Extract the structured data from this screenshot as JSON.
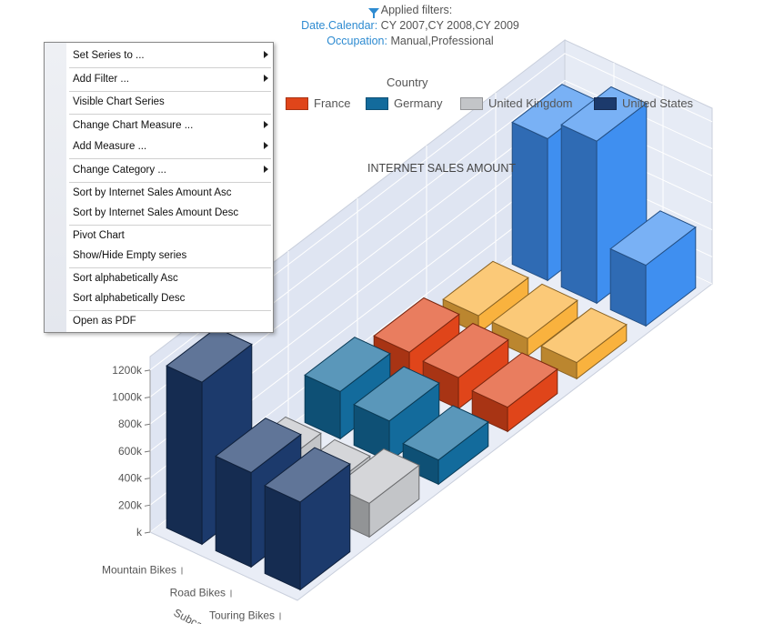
{
  "filters": {
    "title": "Applied filters:",
    "rows": [
      {
        "key": "Date.Calendar:",
        "value": " CY 2007,CY 2008,CY 2009"
      },
      {
        "key": "Occupation:",
        "value": " Manual,Professional"
      }
    ]
  },
  "legend": {
    "title": "Country",
    "items": [
      {
        "label": "France",
        "color": "#e0451a"
      },
      {
        "label": "Germany",
        "color": "#136b9c"
      },
      {
        "label": "United Kingdom",
        "color": "#c3c5c8"
      },
      {
        "label": "United States",
        "color": "#1c3a6c"
      }
    ]
  },
  "menu": {
    "items": [
      {
        "label": "Set Series to ...",
        "submenu": true
      },
      {
        "label": "Add Filter ...",
        "submenu": true
      },
      {
        "label": "Visible Chart Series",
        "submenu": false
      },
      {
        "label": "Change Chart Measure ...",
        "submenu": true
      },
      {
        "label": "Add Measure ...",
        "submenu": true
      },
      {
        "label": "Change Category ...",
        "submenu": true
      },
      {
        "label": "Sort by Internet Sales Amount Asc",
        "submenu": false
      },
      {
        "label": "Sort by Internet Sales Amount Desc",
        "submenu": false
      },
      {
        "label": "Pivot Chart",
        "submenu": false
      },
      {
        "label": "Show/Hide Empty series",
        "submenu": false
      },
      {
        "label": "Sort alphabetically Asc",
        "submenu": false
      },
      {
        "label": "Sort alphabetically Desc",
        "submenu": false
      },
      {
        "label": "Open as PDF",
        "submenu": false
      }
    ]
  },
  "chart_data": {
    "type": "bar",
    "title": "INTERNET SALES AMOUNT",
    "categories": [
      "Mountain Bikes",
      "Road Bikes",
      "Touring Bikes"
    ],
    "xlabel": "Subca",
    "ylim": [
      0,
      1300000
    ],
    "yticks": [
      {
        "value": 0,
        "label": "k"
      },
      {
        "value": 200000,
        "label": "200k"
      },
      {
        "value": 400000,
        "label": "400k"
      },
      {
        "value": 600000,
        "label": "600k"
      },
      {
        "value": 800000,
        "label": "800k"
      },
      {
        "value": 1000000,
        "label": "1000k"
      },
      {
        "value": 1200000,
        "label": "1200k"
      }
    ],
    "series": [
      {
        "name": "United States",
        "values": [
          1200000,
          700000,
          650000
        ],
        "color": "#1c3a6c"
      },
      {
        "name": "United Kingdom",
        "values": [
          150000,
          150000,
          250000
        ],
        "color": "#c3c5c8"
      },
      {
        "name": "Germany",
        "values": [
          350000,
          300000,
          180000
        ],
        "color": "#136b9c"
      },
      {
        "name": "France",
        "values": [
          250000,
          230000,
          180000
        ],
        "color": "#e0451a"
      },
      {
        "name": "",
        "values": [
          130000,
          130000,
          120000
        ],
        "color": "#f9b23e"
      },
      {
        "name": "",
        "values": [
          1050000,
          1200000,
          450000
        ],
        "color": "#3f8ff0"
      }
    ],
    "grid": true,
    "legend_position": "top"
  }
}
